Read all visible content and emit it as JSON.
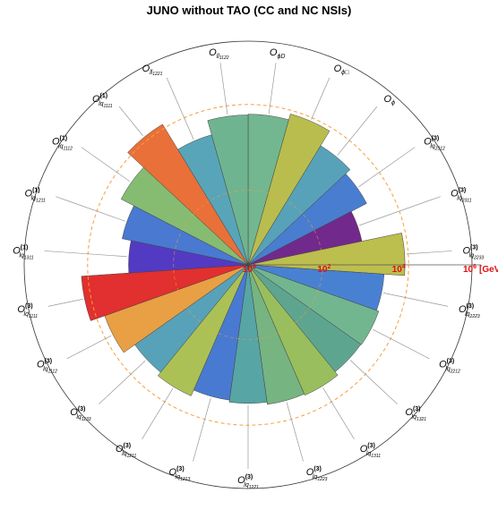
{
  "chart_data": {
    "type": "radial-bar",
    "title": "JUNO without TAO (CC and NC NSIs)",
    "radial_scale": "log",
    "radial_unit": "[GeV]",
    "radial_tick_labels": [
      "10",
      "10",
      "10",
      "10"
    ],
    "radial_tick_exponents": [
      "0",
      "2",
      "4",
      "6"
    ],
    "radial_tick_values": [
      1,
      100,
      10000,
      1000000
    ],
    "reference_circle_value": 20000,
    "bars": [
      {
        "label": "O",
        "sub": "ϕD",
        "sup": "",
        "subsub": "",
        "value": 11000,
        "color": "#6ab38a"
      },
      {
        "label": "O",
        "sub": "ϕ□",
        "sup": "",
        "subsub": "",
        "value": 16000,
        "color": "#b5b944"
      },
      {
        "label": "O",
        "sub": "ϕ",
        "sup": "",
        "subsub": "",
        "value": 5500,
        "color": "#4e9db5"
      },
      {
        "label": "O",
        "sub": "lq",
        "sup": "(3)",
        "subsub": "2312",
        "value": 3800,
        "color": "#3f76cc"
      },
      {
        "label": "O",
        "sub": "lq",
        "sup": "(3)",
        "subsub": "2311",
        "value": 1300,
        "color": "#6a1d86"
      },
      {
        "label": "O",
        "sub": "lq",
        "sup": "(3)",
        "subsub": "2233",
        "value": 16000,
        "color": "#b8bb44"
      },
      {
        "label": "O",
        "sub": "lq",
        "sup": "(3)",
        "subsub": "2223",
        "value": 4500,
        "color": "#3f7ad0"
      },
      {
        "label": "O",
        "sub": "lq",
        "sup": "(3)",
        "subsub": "2212",
        "value": 5200,
        "color": "#6ab28a"
      },
      {
        "label": "O",
        "sub": "lq",
        "sup": "(3)",
        "subsub": "1321",
        "value": 5000,
        "color": "#55a08a"
      },
      {
        "label": "O",
        "sub": "lq",
        "sup": "(3)",
        "subsub": "1311",
        "value": 6500,
        "color": "#93bb55"
      },
      {
        "label": "O",
        "sub": "lq",
        "sup": "(3)",
        "subsub": "1223",
        "value": 6000,
        "color": "#6fb07a"
      },
      {
        "label": "O",
        "sub": "lq",
        "sup": "(3)",
        "subsub": "1221",
        "value": 5200,
        "color": "#4ea0a0"
      },
      {
        "label": "O",
        "sub": "lq",
        "sup": "(3)",
        "subsub": "1213",
        "value": 4600,
        "color": "#3f73cf"
      },
      {
        "label": "O",
        "sub": "lq",
        "sup": "(3)",
        "subsub": "1211",
        "value": 6800,
        "color": "#a8be4c"
      },
      {
        "label": "O",
        "sub": "lq",
        "sup": "(3)",
        "subsub": "1133",
        "value": 5200,
        "color": "#4e9db5"
      },
      {
        "label": "O",
        "sub": "lq",
        "sup": "(3)",
        "subsub": "1112",
        "value": 12000,
        "color": "#e89a3a"
      },
      {
        "label": "O",
        "sub": "lq",
        "sup": "(3)",
        "subsub": "1111",
        "value": 30000,
        "color": "#e02424"
      },
      {
        "label": "O",
        "sub": "lq",
        "sup": "(1)",
        "subsub": "1311",
        "value": 1600,
        "color": "#4a2fc0"
      },
      {
        "label": "O",
        "sub": "lq",
        "sup": "(1)",
        "subsub": "1211",
        "value": 2800,
        "color": "#3f72cf"
      },
      {
        "label": "O",
        "sub": "lq",
        "sup": "(1)",
        "subsub": "1112",
        "value": 6800,
        "color": "#7fb86a"
      },
      {
        "label": "O",
        "sub": "lq",
        "sup": "(1)",
        "subsub": "1111",
        "value": 26000,
        "color": "#e8682e"
      },
      {
        "label": "O",
        "sub": "ll",
        "sup": "",
        "subsub": "1221",
        "value": 4200,
        "color": "#4fa0b5"
      },
      {
        "label": "O",
        "sub": "ll",
        "sup": "",
        "subsub": "1122",
        "value": 10500,
        "color": "#67b08a"
      }
    ]
  }
}
